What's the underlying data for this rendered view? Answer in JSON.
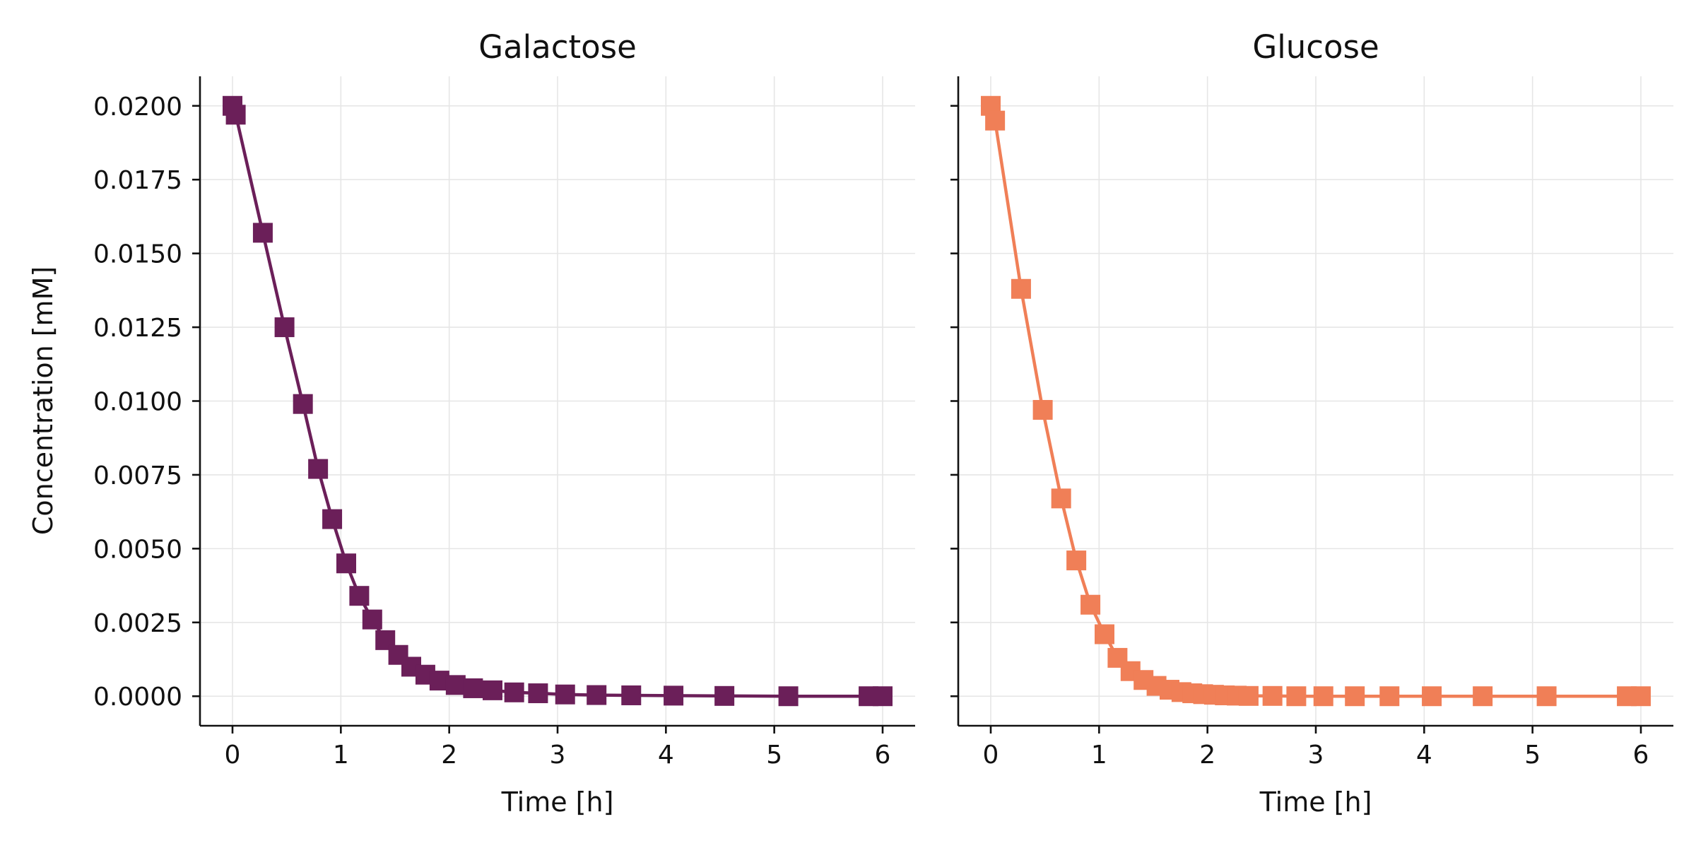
{
  "chart_data": [
    {
      "type": "line",
      "title": "Galactose",
      "xlabel": "Time [h]",
      "ylabel": "Concentration [mM]",
      "xlim": [
        -0.3,
        6.3
      ],
      "ylim": [
        -0.001,
        0.021
      ],
      "xticks": [
        0,
        1,
        2,
        3,
        4,
        5,
        6
      ],
      "xtick_labels": [
        "0",
        "1",
        "2",
        "3",
        "4",
        "5",
        "6"
      ],
      "yticks": [
        0,
        0.0025,
        0.005,
        0.0075,
        0.01,
        0.0125,
        0.015,
        0.0175,
        0.02
      ],
      "ytick_labels": [
        "0.0000",
        "0.0025",
        "0.0050",
        "0.0075",
        "0.0100",
        "0.0125",
        "0.0150",
        "0.0175",
        "0.0200"
      ],
      "grid": true,
      "color": "#6b1f59",
      "marker": "square",
      "series": [
        {
          "x": [
            0,
            0.03,
            0.28,
            0.48,
            0.65,
            0.79,
            0.92,
            1.05,
            1.17,
            1.29,
            1.41,
            1.53,
            1.65,
            1.78,
            1.91,
            2.06,
            2.22,
            2.4,
            2.6,
            2.82,
            3.07,
            3.36,
            3.68,
            4.07,
            4.54,
            5.13,
            5.87,
            6.0
          ],
          "y": [
            0.02,
            0.0197,
            0.0157,
            0.0125,
            0.0099,
            0.0077,
            0.006,
            0.0045,
            0.0034,
            0.0026,
            0.0019,
            0.0014,
            0.001,
            0.00073,
            0.00053,
            0.00038,
            0.00027,
            0.0002,
            0.00013,
            0.0001,
            6e-05,
            4e-05,
            3e-05,
            2e-05,
            1e-05,
            0,
            0,
            0
          ]
        }
      ]
    },
    {
      "type": "line",
      "title": "Glucose",
      "xlabel": "Time [h]",
      "ylabel": "",
      "xlim": [
        -0.3,
        6.3
      ],
      "ylim": [
        -0.001,
        0.021
      ],
      "xticks": [
        0,
        1,
        2,
        3,
        4,
        5,
        6
      ],
      "xtick_labels": [
        "0",
        "1",
        "2",
        "3",
        "4",
        "5",
        "6"
      ],
      "yticks": [
        0,
        0.0025,
        0.005,
        0.0075,
        0.01,
        0.0125,
        0.015,
        0.0175,
        0.02
      ],
      "ytick_labels": [],
      "grid": true,
      "color": "#f07f57",
      "marker": "square",
      "series": [
        {
          "x": [
            0,
            0.04,
            0.28,
            0.48,
            0.65,
            0.79,
            0.92,
            1.05,
            1.17,
            1.29,
            1.41,
            1.53,
            1.65,
            1.76,
            1.86,
            1.96,
            2.06,
            2.16,
            2.27,
            2.38,
            2.6,
            2.82,
            3.07,
            3.36,
            3.68,
            4.07,
            4.54,
            5.13,
            5.87,
            6.0
          ],
          "y": [
            0.02,
            0.0195,
            0.0138,
            0.0097,
            0.0067,
            0.0046,
            0.0031,
            0.0021,
            0.0013,
            0.00085,
            0.00055,
            0.00035,
            0.00022,
            0.00014,
            0.0001,
            7e-05,
            5e-05,
            3e-05,
            2e-05,
            1e-05,
            1e-05,
            0,
            0,
            0,
            0,
            0,
            0,
            0,
            0,
            0
          ]
        }
      ]
    }
  ]
}
